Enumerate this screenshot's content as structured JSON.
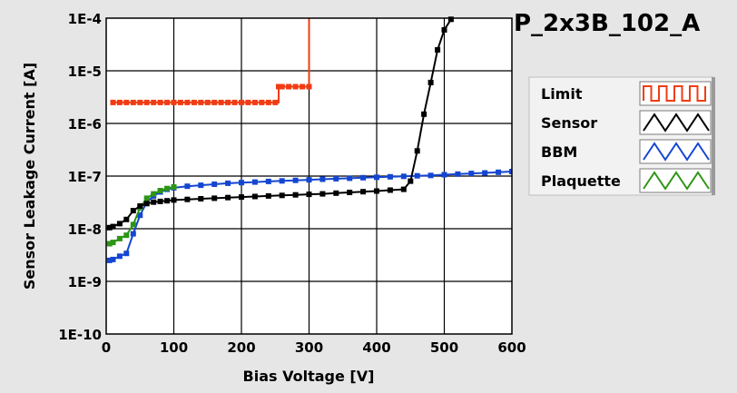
{
  "chart_data": {
    "type": "line",
    "title": "P_2x3B_102_A",
    "xlabel": "Bias Voltage [V]",
    "ylabel": "Sensor Leakage Current [A]",
    "xlim": [
      0,
      600
    ],
    "ylim": [
      1e-10,
      0.0001
    ],
    "y_scale": "log",
    "grid": true,
    "legend_position": "right",
    "x_ticks": [
      "0",
      "100",
      "200",
      "300",
      "400",
      "500",
      "600"
    ],
    "y_ticks": [
      "1E-4",
      "1E-5",
      "1E-6",
      "1E-7",
      "1E-8",
      "1E-9",
      "1E-10"
    ],
    "series": [
      {
        "name": "Limit",
        "color": "#f03c14",
        "x": [
          10,
          20,
          30,
          40,
          50,
          60,
          70,
          80,
          90,
          100,
          110,
          120,
          130,
          140,
          150,
          160,
          170,
          180,
          190,
          200,
          210,
          220,
          230,
          240,
          250,
          255,
          260,
          270,
          280,
          290,
          300,
          300
        ],
        "y": [
          2.5e-06,
          2.5e-06,
          2.5e-06,
          2.5e-06,
          2.5e-06,
          2.5e-06,
          2.5e-06,
          2.5e-06,
          2.5e-06,
          2.5e-06,
          2.5e-06,
          2.5e-06,
          2.5e-06,
          2.5e-06,
          2.5e-06,
          2.5e-06,
          2.5e-06,
          2.5e-06,
          2.5e-06,
          2.5e-06,
          2.5e-06,
          2.5e-06,
          2.5e-06,
          2.5e-06,
          2.5e-06,
          5e-06,
          5e-06,
          5e-06,
          5e-06,
          5e-06,
          5e-06,
          0.0001
        ]
      },
      {
        "name": "Sensor",
        "color": "#000000",
        "x": [
          5,
          10,
          20,
          30,
          40,
          50,
          60,
          70,
          80,
          90,
          100,
          120,
          140,
          160,
          180,
          200,
          220,
          240,
          260,
          280,
          300,
          320,
          340,
          360,
          380,
          400,
          420,
          440,
          450,
          460,
          470,
          480,
          490,
          500,
          510
        ],
        "y": [
          1.05e-08,
          1.1e-08,
          1.25e-08,
          1.5e-08,
          2.2e-08,
          2.7e-08,
          3e-08,
          3.2e-08,
          3.3e-08,
          3.4e-08,
          3.5e-08,
          3.6e-08,
          3.7e-08,
          3.8e-08,
          3.9e-08,
          4e-08,
          4.1e-08,
          4.2e-08,
          4.3e-08,
          4.4e-08,
          4.5e-08,
          4.6e-08,
          4.75e-08,
          4.9e-08,
          5.05e-08,
          5.2e-08,
          5.4e-08,
          5.6e-08,
          8e-08,
          3e-07,
          1.5e-06,
          6e-06,
          2.5e-05,
          6e-05,
          9.5e-05
        ]
      },
      {
        "name": "BBM",
        "color": "#1446d2",
        "x": [
          5,
          10,
          20,
          30,
          40,
          50,
          60,
          70,
          80,
          90,
          100,
          120,
          140,
          160,
          180,
          200,
          220,
          240,
          260,
          280,
          300,
          320,
          340,
          360,
          380,
          400,
          420,
          440,
          460,
          480,
          500,
          520,
          540,
          560,
          580,
          600
        ],
        "y": [
          2.5e-09,
          2.6e-09,
          3e-09,
          3.4e-09,
          8e-09,
          1.8e-08,
          3.2e-08,
          4.2e-08,
          5e-08,
          5.6e-08,
          6e-08,
          6.4e-08,
          6.7e-08,
          7e-08,
          7.3e-08,
          7.5e-08,
          7.7e-08,
          7.9e-08,
          8.1e-08,
          8.3e-08,
          8.5e-08,
          8.7e-08,
          8.9e-08,
          9.1e-08,
          9.3e-08,
          9.5e-08,
          9.7e-08,
          9.9e-08,
          1.01e-07,
          1.03e-07,
          1.06e-07,
          1.09e-07,
          1.12e-07,
          1.15e-07,
          1.18e-07,
          1.22e-07
        ]
      },
      {
        "name": "Plaquette",
        "color": "#2d9614",
        "x": [
          5,
          10,
          20,
          30,
          40,
          50,
          60,
          70,
          80,
          90,
          100
        ],
        "y": [
          5.2e-09,
          5.5e-09,
          6.5e-09,
          7.5e-09,
          1.2e-08,
          2.5e-08,
          3.8e-08,
          4.6e-08,
          5.3e-08,
          5.8e-08,
          6.2e-08
        ]
      }
    ]
  },
  "legend_items": [
    "Limit",
    "Sensor",
    "BBM",
    "Plaquette"
  ]
}
